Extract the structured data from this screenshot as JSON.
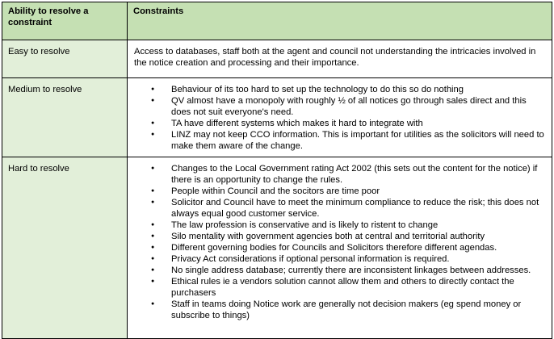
{
  "table": {
    "headers": [
      "Ability to resolve a constraint",
      "Constraints"
    ],
    "rows": [
      {
        "label": "Easy to resolve",
        "text": "Access to databases, staff both at the agent and council not understanding the intricacies involved in the notice creation and processing and their importance."
      },
      {
        "label": "Medium to resolve",
        "items": [
          "Behaviour of its too hard to set up the technology to do this so do nothing",
          "QV almost have a monopoly with roughly ½ of all notices go through sales direct and this does not suit everyone's need.",
          "TA have different systems which makes it hard to  integrate with",
          "LINZ may not keep CCO information. This is important for utilities as the solicitors will need to make them aware of the change."
        ]
      },
      {
        "label": "Hard to resolve",
        "items": [
          "Changes to the Local Government rating Act 2002 (this sets out the content for the notice) if there is an opportunity to change the rules.",
          "People within Council and the socitors are time poor",
          "Solicitor and Council have to meet the minimum compliance to reduce the risk; this does not always equal good customer service.",
          "The law profession is conservative and is likely to ristent to change",
          "Silo mentality with government agencies both at central and territorial authority",
          "Different governing bodies for Councils and Solicitors therefore different agendas.",
          "Privacy Act considerations if optional personal information is required.",
          "No single address database; currently there are inconsistent linkages between addresses.",
          "Ethical rules ie a vendors solution cannot allow them and others to directly contact the purchasers",
          "Staff in teams doing Notice work are generally not decision makers (eg spend money or subscribe to things)"
        ]
      }
    ]
  },
  "colors": {
    "header_bg": "#c5e0b3",
    "label_bg": "#e2efd9",
    "border": "#000000"
  }
}
